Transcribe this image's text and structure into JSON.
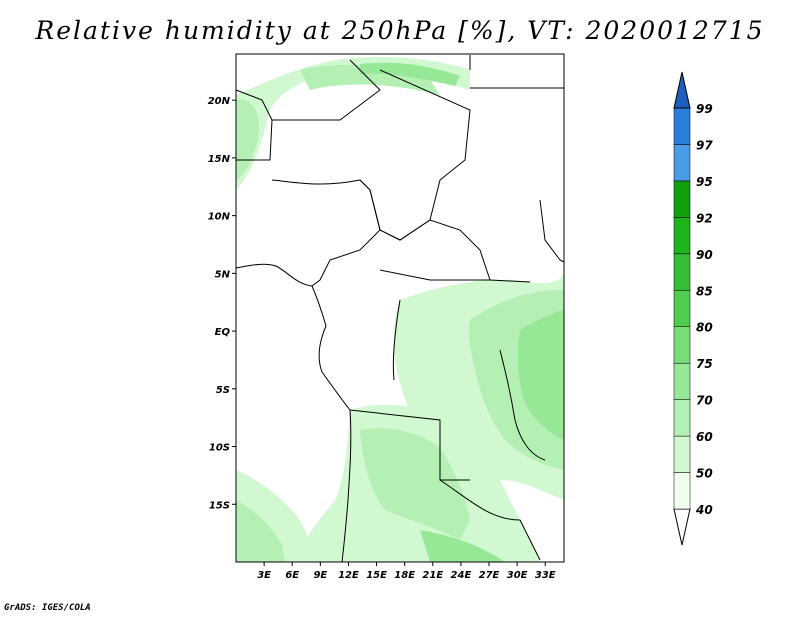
{
  "title": "Relative humidity at 250hPa [%], VT: 2020012715",
  "credit": "GrADS: IGES/COLA",
  "map": {
    "lon_range": [
      0,
      35
    ],
    "lat_range": [
      -20,
      24
    ],
    "lat_labels": [
      {
        "lat": 20,
        "text": "20N"
      },
      {
        "lat": 15,
        "text": "15N"
      },
      {
        "lat": 10,
        "text": "10N"
      },
      {
        "lat": 5,
        "text": "5N"
      },
      {
        "lat": 0,
        "text": "EQ"
      },
      {
        "lat": -5,
        "text": "5S"
      },
      {
        "lat": -10,
        "text": "10S"
      },
      {
        "lat": -15,
        "text": "15S"
      }
    ],
    "lon_labels": [
      {
        "lon": 3,
        "text": "3E"
      },
      {
        "lon": 6,
        "text": "6E"
      },
      {
        "lon": 9,
        "text": "9E"
      },
      {
        "lon": 12,
        "text": "12E"
      },
      {
        "lon": 15,
        "text": "15E"
      },
      {
        "lon": 18,
        "text": "18E"
      },
      {
        "lon": 21,
        "text": "21E"
      },
      {
        "lon": 24,
        "text": "24E"
      },
      {
        "lon": 27,
        "text": "27E"
      },
      {
        "lon": 30,
        "text": "30E"
      },
      {
        "lon": 33,
        "text": "33E"
      }
    ]
  },
  "colorbar": {
    "levels": [
      "40",
      "50",
      "60",
      "70",
      "75",
      "80",
      "85",
      "90",
      "92",
      "95",
      "97",
      "99"
    ],
    "colors": [
      "#f0fff0",
      "#d2f8d2",
      "#b4f0b4",
      "#96e796",
      "#78dc78",
      "#50cd50",
      "#37be37",
      "#1eb41e",
      "#0fa00f",
      "#4b9be6",
      "#2b7fdc",
      "#1c5fbe"
    ]
  }
}
